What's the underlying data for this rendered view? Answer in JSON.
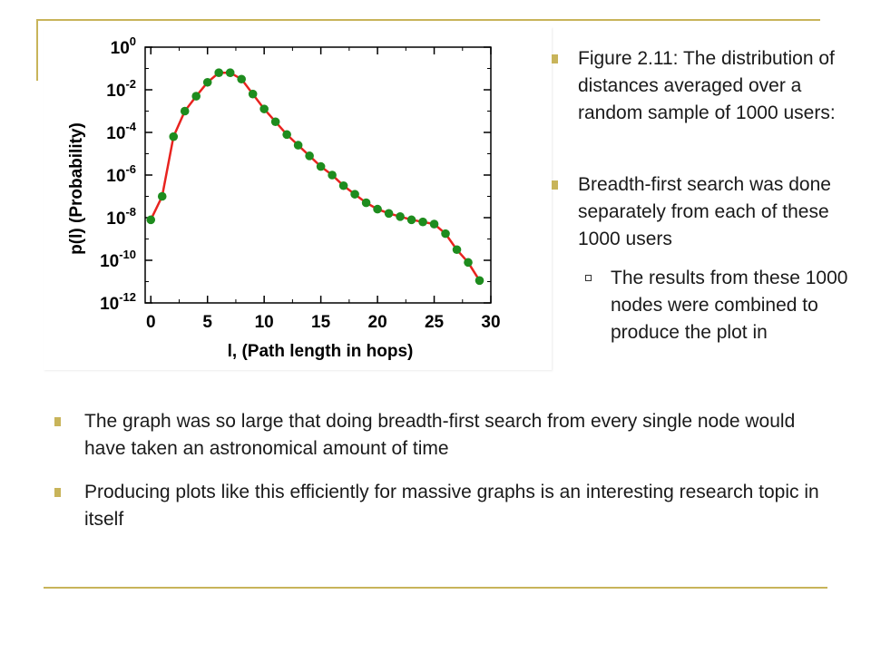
{
  "colors": {
    "accent": "#c8b45a",
    "line": "#e8231f",
    "marker": "#1e8c1e"
  },
  "bullets": {
    "right": [
      "Figure 2.11: The distribution of distances averaged over a random sample of 1000 users:",
      "Breadth-first search was done separately from each of these 1000 users"
    ],
    "subbullet": "The results from these 1000 nodes were combined to produce the plot in",
    "bottom": [
      "The graph was so large that doing breadth-first search from every single node would have taken an astronomical amount of time",
      "Producing plots like this efficiently for massive graphs is an interesting research topic in itself"
    ]
  },
  "chart_data": {
    "type": "line",
    "title": "",
    "xlabel": "l, (Path length in hops)",
    "ylabel": "p(l) (Probability)",
    "log_y": true,
    "xlim": [
      -0.5,
      30
    ],
    "ylim_exponent": [
      -12,
      0
    ],
    "xticks": [
      "0",
      "5",
      "10",
      "15",
      "20",
      "25",
      "30"
    ],
    "ytick_exponents": [
      "0",
      "-2",
      "-4",
      "-6",
      "-8",
      "-10",
      "-12"
    ],
    "ytick_base": "10",
    "grid": false,
    "legend": "none",
    "series": [
      {
        "x": [
          0,
          1,
          2,
          3,
          4,
          5,
          6,
          7,
          8,
          9,
          10,
          11,
          12,
          13,
          14,
          15,
          16,
          17,
          18,
          19,
          20,
          21,
          22,
          23,
          24,
          25,
          26,
          27,
          28,
          29
        ],
        "log10_y": [
          -8.1,
          -7.0,
          -4.2,
          -3.0,
          -2.3,
          -1.65,
          -1.2,
          -1.2,
          -1.5,
          -2.2,
          -2.9,
          -3.5,
          -4.1,
          -4.6,
          -5.1,
          -5.6,
          -6.0,
          -6.5,
          -6.9,
          -7.3,
          -7.6,
          -7.8,
          -7.95,
          -8.1,
          -8.2,
          -8.3,
          -8.75,
          -9.5,
          -10.1,
          -10.95
        ]
      }
    ]
  }
}
